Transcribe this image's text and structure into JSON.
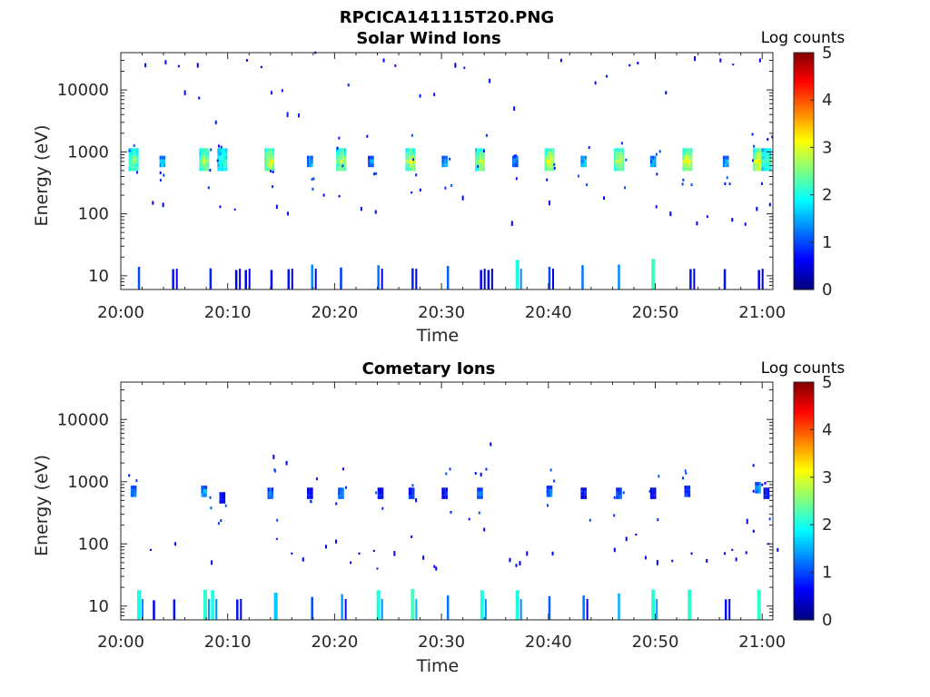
{
  "figure_title": "RPCICA141115T20.PNG",
  "chart_data": [
    {
      "type": "heatmap",
      "title": "Solar Wind Ions",
      "xlabel": "Time",
      "ylabel": "Energy (eV)",
      "yscale": "log",
      "xlim": [
        "20:00",
        "21:01"
      ],
      "ylim": [
        6,
        40000
      ],
      "x_ticks": [
        "20:00",
        "20:10",
        "20:20",
        "20:30",
        "20:40",
        "20:50",
        "21:00"
      ],
      "y_ticks": [
        "10",
        "100",
        "1000",
        "10000"
      ],
      "colorbar": {
        "label": "Log counts",
        "range": [
          0,
          5
        ],
        "ticks": [
          "0",
          "1",
          "2",
          "3",
          "4",
          "5"
        ],
        "colormap": "jet"
      },
      "clusters": [
        {
          "t": 1.2,
          "e": 750,
          "v": 2.6
        },
        {
          "t": 3.9,
          "e": 700,
          "v": 1.8
        },
        {
          "t": 7.8,
          "e": 750,
          "v": 2.8
        },
        {
          "t": 9.5,
          "e": 750,
          "v": 2.2
        },
        {
          "t": 13.9,
          "e": 750,
          "v": 3.0
        },
        {
          "t": 17.7,
          "e": 700,
          "v": 1.6
        },
        {
          "t": 20.6,
          "e": 750,
          "v": 2.8
        },
        {
          "t": 23.4,
          "e": 700,
          "v": 1.5
        },
        {
          "t": 27.1,
          "e": 750,
          "v": 3.0
        },
        {
          "t": 30.3,
          "e": 700,
          "v": 1.6
        },
        {
          "t": 33.6,
          "e": 750,
          "v": 2.9
        },
        {
          "t": 36.9,
          "e": 700,
          "v": 1.4
        },
        {
          "t": 40.1,
          "e": 750,
          "v": 3.1
        },
        {
          "t": 43.3,
          "e": 700,
          "v": 1.8
        },
        {
          "t": 46.6,
          "e": 750,
          "v": 2.9
        },
        {
          "t": 49.8,
          "e": 700,
          "v": 1.6
        },
        {
          "t": 53.0,
          "e": 750,
          "v": 3.1
        },
        {
          "t": 56.6,
          "e": 700,
          "v": 1.6
        },
        {
          "t": 59.6,
          "e": 750,
          "v": 3.2
        },
        {
          "t": 60.4,
          "e": 750,
          "v": 2.4
        }
      ],
      "low_energy_bars": [
        {
          "t": 1.7,
          "v": 1.0
        },
        {
          "t": 4.9,
          "v": 0.7
        },
        {
          "t": 8.4,
          "v": 0.8
        },
        {
          "t": 10.8,
          "v": 0.6
        },
        {
          "t": 11.7,
          "v": 0.6
        },
        {
          "t": 14.1,
          "v": 0.6
        },
        {
          "t": 15.7,
          "v": 0.7
        },
        {
          "t": 17.9,
          "v": 1.3
        },
        {
          "t": 20.6,
          "v": 0.9
        },
        {
          "t": 24.1,
          "v": 1.2
        },
        {
          "t": 27.3,
          "v": 0.8
        },
        {
          "t": 30.6,
          "v": 1.1
        },
        {
          "t": 33.7,
          "v": 0.6
        },
        {
          "t": 34.4,
          "v": 0.6
        },
        {
          "t": 37.1,
          "v": 2.0
        },
        {
          "t": 40.1,
          "v": 1.0
        },
        {
          "t": 43.2,
          "v": 1.2
        },
        {
          "t": 46.6,
          "v": 1.3
        },
        {
          "t": 49.8,
          "v": 2.2
        },
        {
          "t": 53.3,
          "v": 0.7
        },
        {
          "t": 56.5,
          "v": 0.7
        },
        {
          "t": 59.7,
          "v": 0.6
        }
      ],
      "scatter": [
        {
          "t": 2.3,
          "e": 25000,
          "v": 0.7
        },
        {
          "t": 4.2,
          "e": 28000,
          "v": 0.5
        },
        {
          "t": 6.0,
          "e": 9000,
          "v": 0.7
        },
        {
          "t": 7.2,
          "e": 25000,
          "v": 0.6
        },
        {
          "t": 8.9,
          "e": 3000,
          "v": 0.8
        },
        {
          "t": 11.8,
          "e": 30000,
          "v": 0.6
        },
        {
          "t": 14.1,
          "e": 9000,
          "v": 0.6
        },
        {
          "t": 15.6,
          "e": 4000,
          "v": 0.8
        },
        {
          "t": 18.2,
          "e": 40000,
          "v": 0.6
        },
        {
          "t": 21.3,
          "e": 12000,
          "v": 0.8
        },
        {
          "t": 24.6,
          "e": 30000,
          "v": 0.6
        },
        {
          "t": 28.0,
          "e": 8000,
          "v": 0.7
        },
        {
          "t": 31.3,
          "e": 25000,
          "v": 0.5
        },
        {
          "t": 34.5,
          "e": 14000,
          "v": 0.6
        },
        {
          "t": 36.8,
          "e": 5000,
          "v": 0.7
        },
        {
          "t": 41.2,
          "e": 30000,
          "v": 0.6
        },
        {
          "t": 44.4,
          "e": 13000,
          "v": 0.7
        },
        {
          "t": 47.6,
          "e": 25000,
          "v": 0.6
        },
        {
          "t": 51.0,
          "e": 9000,
          "v": 0.6
        },
        {
          "t": 53.7,
          "e": 32000,
          "v": 0.6
        },
        {
          "t": 56.1,
          "e": 30000,
          "v": 0.6
        },
        {
          "t": 59.8,
          "e": 30000,
          "v": 0.6
        },
        {
          "t": 3.0,
          "e": 150,
          "v": 0.6
        },
        {
          "t": 9.3,
          "e": 130,
          "v": 0.6
        },
        {
          "t": 14.6,
          "e": 130,
          "v": 0.7
        },
        {
          "t": 19.0,
          "e": 200,
          "v": 0.6
        },
        {
          "t": 22.5,
          "e": 120,
          "v": 0.6
        },
        {
          "t": 27.2,
          "e": 220,
          "v": 0.7
        },
        {
          "t": 32.0,
          "e": 180,
          "v": 0.6
        },
        {
          "t": 36.6,
          "e": 70,
          "v": 0.6
        },
        {
          "t": 40.1,
          "e": 150,
          "v": 0.6
        },
        {
          "t": 45.2,
          "e": 180,
          "v": 0.6
        },
        {
          "t": 50.1,
          "e": 130,
          "v": 0.6
        },
        {
          "t": 53.9,
          "e": 70,
          "v": 0.6
        },
        {
          "t": 57.2,
          "e": 80,
          "v": 0.6
        },
        {
          "t": 59.5,
          "e": 120,
          "v": 0.6
        }
      ]
    },
    {
      "type": "heatmap",
      "title": "Cometary Ions",
      "xlabel": "Time",
      "ylabel": "Energy (eV)",
      "yscale": "log",
      "xlim": [
        "20:00",
        "21:01"
      ],
      "ylim": [
        6,
        40000
      ],
      "x_ticks": [
        "20:00",
        "20:10",
        "20:20",
        "20:30",
        "20:40",
        "20:50",
        "21:00"
      ],
      "y_ticks": [
        "10",
        "100",
        "1000",
        "10000"
      ],
      "colorbar": {
        "label": "Log counts",
        "range": [
          0,
          5
        ],
        "ticks": [
          "0",
          "1",
          "2",
          "3",
          "4",
          "5"
        ],
        "colormap": "jet"
      },
      "clusters": [
        {
          "t": 1.2,
          "e": 700,
          "v": 1.5
        },
        {
          "t": 7.8,
          "e": 700,
          "v": 1.6
        },
        {
          "t": 9.5,
          "e": 550,
          "v": 0.7
        },
        {
          "t": 14.0,
          "e": 650,
          "v": 1.3
        },
        {
          "t": 17.7,
          "e": 650,
          "v": 0.8
        },
        {
          "t": 20.6,
          "e": 650,
          "v": 1.4
        },
        {
          "t": 24.3,
          "e": 650,
          "v": 0.7
        },
        {
          "t": 27.2,
          "e": 650,
          "v": 1.0
        },
        {
          "t": 30.3,
          "e": 650,
          "v": 0.8
        },
        {
          "t": 33.6,
          "e": 650,
          "v": 1.3
        },
        {
          "t": 40.1,
          "e": 700,
          "v": 1.4
        },
        {
          "t": 43.3,
          "e": 650,
          "v": 0.7
        },
        {
          "t": 46.6,
          "e": 650,
          "v": 1.2
        },
        {
          "t": 49.8,
          "e": 650,
          "v": 0.7
        },
        {
          "t": 53.0,
          "e": 700,
          "v": 0.9
        },
        {
          "t": 59.6,
          "e": 800,
          "v": 1.5
        },
        {
          "t": 60.4,
          "e": 650,
          "v": 0.8
        }
      ],
      "low_energy_bars": [
        {
          "t": 1.7,
          "v": 2.0
        },
        {
          "t": 3.1,
          "v": 0.6
        },
        {
          "t": 5.0,
          "v": 0.7
        },
        {
          "t": 7.9,
          "v": 2.1
        },
        {
          "t": 8.6,
          "v": 2.0
        },
        {
          "t": 10.9,
          "v": 0.7
        },
        {
          "t": 14.5,
          "v": 1.6
        },
        {
          "t": 17.9,
          "v": 1.0
        },
        {
          "t": 20.7,
          "v": 1.4
        },
        {
          "t": 24.1,
          "v": 2.0
        },
        {
          "t": 27.3,
          "v": 2.2
        },
        {
          "t": 30.6,
          "v": 1.2
        },
        {
          "t": 33.8,
          "v": 2.0
        },
        {
          "t": 37.1,
          "v": 2.0
        },
        {
          "t": 40.1,
          "v": 1.1
        },
        {
          "t": 43.3,
          "v": 1.2
        },
        {
          "t": 46.6,
          "v": 1.5
        },
        {
          "t": 49.8,
          "v": 2.1
        },
        {
          "t": 53.2,
          "v": 2.1
        },
        {
          "t": 56.6,
          "v": 0.7
        },
        {
          "t": 59.7,
          "v": 2.1
        }
      ],
      "scatter": [
        {
          "t": 14.3,
          "e": 2500,
          "v": 0.6
        },
        {
          "t": 34.6,
          "e": 4000,
          "v": 0.6
        },
        {
          "t": 33.7,
          "e": 1300,
          "v": 0.6
        },
        {
          "t": 2.8,
          "e": 80,
          "v": 0.6
        },
        {
          "t": 5.1,
          "e": 100,
          "v": 0.6
        },
        {
          "t": 8.5,
          "e": 50,
          "v": 0.6
        },
        {
          "t": 14.6,
          "e": 120,
          "v": 0.7
        },
        {
          "t": 16.0,
          "e": 70,
          "v": 0.6
        },
        {
          "t": 19.2,
          "e": 90,
          "v": 0.6
        },
        {
          "t": 21.5,
          "e": 50,
          "v": 0.6
        },
        {
          "t": 22.3,
          "e": 70,
          "v": 0.6
        },
        {
          "t": 24.0,
          "e": 40,
          "v": 0.6
        },
        {
          "t": 25.6,
          "e": 70,
          "v": 0.6
        },
        {
          "t": 27.2,
          "e": 130,
          "v": 0.6
        },
        {
          "t": 28.3,
          "e": 60,
          "v": 0.6
        },
        {
          "t": 29.5,
          "e": 40,
          "v": 0.6
        },
        {
          "t": 32.6,
          "e": 250,
          "v": 0.6
        },
        {
          "t": 34.0,
          "e": 170,
          "v": 0.6
        },
        {
          "t": 36.4,
          "e": 55,
          "v": 0.6
        },
        {
          "t": 37.0,
          "e": 45,
          "v": 0.6
        },
        {
          "t": 38.0,
          "e": 70,
          "v": 0.6
        },
        {
          "t": 40.4,
          "e": 70,
          "v": 0.6
        },
        {
          "t": 46.2,
          "e": 80,
          "v": 0.6
        },
        {
          "t": 47.3,
          "e": 120,
          "v": 0.6
        },
        {
          "t": 49.1,
          "e": 60,
          "v": 0.6
        },
        {
          "t": 50.2,
          "e": 50,
          "v": 0.6
        },
        {
          "t": 53.4,
          "e": 70,
          "v": 0.6
        },
        {
          "t": 56.5,
          "e": 70,
          "v": 0.6
        },
        {
          "t": 57.2,
          "e": 80,
          "v": 0.6
        },
        {
          "t": 58.6,
          "e": 230,
          "v": 0.6
        },
        {
          "t": 59.2,
          "e": 160,
          "v": 0.6
        },
        {
          "t": 60.6,
          "e": 100,
          "v": 0.6
        }
      ]
    }
  ]
}
